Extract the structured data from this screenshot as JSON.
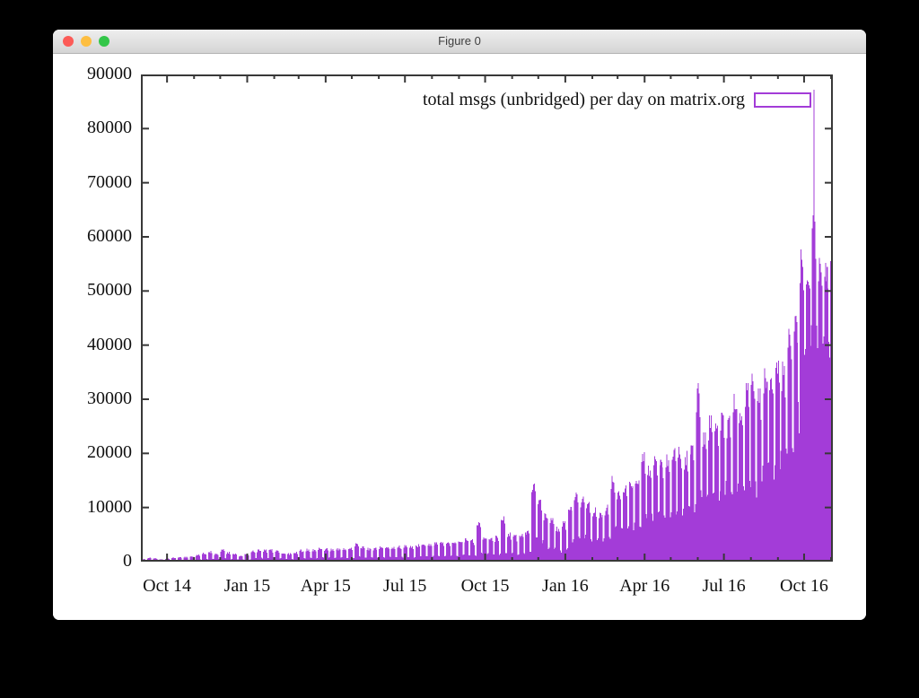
{
  "window": {
    "title": "Figure 0",
    "buttons": {
      "close": "close",
      "minimize": "minimize",
      "zoom": "zoom"
    }
  },
  "colors": {
    "series": "#a33cd8",
    "axis": "#383838",
    "text": "#111111",
    "close_button": "#fc5b57",
    "minimize_button": "#fdbe41",
    "zoom_button": "#33c649",
    "titlebar_top": "#eeeeee",
    "titlebar_bottom": "#d5d5d5"
  },
  "chart_data": {
    "type": "bar",
    "legend": "total msgs (unbridged) per day on matrix.org",
    "title": "",
    "xlabel": "",
    "ylabel": "",
    "grid": false,
    "legend_position": "top-right",
    "ylim": [
      0,
      90000
    ],
    "yticks": [
      "0",
      "10000",
      "20000",
      "30000",
      "40000",
      "50000",
      "60000",
      "70000",
      "80000",
      "90000"
    ],
    "xticks": [
      {
        "label": "Oct 14",
        "day": 30
      },
      {
        "label": "Jan 15",
        "day": 122
      },
      {
        "label": "Apr 15",
        "day": 212
      },
      {
        "label": "Jul 15",
        "day": 303
      },
      {
        "label": "Oct 15",
        "day": 395
      },
      {
        "label": "Jan 16",
        "day": 487
      },
      {
        "label": "Apr 16",
        "day": 578
      },
      {
        "label": "Jul 16",
        "day": 669
      },
      {
        "label": "Oct 16",
        "day": 761
      }
    ],
    "minor_tick_days": [
      30,
      61,
      91,
      122,
      153,
      181,
      212,
      242,
      273,
      303,
      334,
      365,
      395,
      426,
      456,
      487,
      518,
      547,
      578,
      608,
      639,
      669,
      700,
      731,
      761,
      792
    ],
    "x_start": "2014-09-01",
    "x_end": "2016-11-03",
    "days_total": 794,
    "week0_start": "2014-09-01",
    "sampling_note": "daily impulses; values below are weekly [weekday-peak, weekend-trough] envelope read from the plot",
    "weekly_envelope": [
      [
        500,
        120
      ],
      [
        750,
        160
      ],
      [
        650,
        130
      ],
      [
        450,
        90
      ],
      [
        600,
        150
      ],
      [
        750,
        200
      ],
      [
        850,
        230
      ],
      [
        950,
        260
      ],
      [
        1100,
        300
      ],
      [
        1400,
        380
      ],
      [
        1700,
        450
      ],
      [
        2000,
        520
      ],
      [
        1600,
        430
      ],
      [
        2300,
        600
      ],
      [
        1800,
        480
      ],
      [
        1500,
        400
      ],
      [
        1200,
        330
      ],
      [
        1500,
        420
      ],
      [
        2100,
        580
      ],
      [
        2300,
        640
      ],
      [
        2200,
        600
      ],
      [
        2300,
        640
      ],
      [
        2100,
        580
      ],
      [
        1700,
        470
      ],
      [
        1600,
        440
      ],
      [
        1800,
        500
      ],
      [
        2200,
        610
      ],
      [
        2400,
        660
      ],
      [
        2300,
        630
      ],
      [
        2600,
        720
      ],
      [
        2500,
        690
      ],
      [
        2400,
        660
      ],
      [
        2600,
        720
      ],
      [
        2500,
        690
      ],
      [
        2600,
        720
      ],
      [
        3400,
        900
      ],
      [
        2800,
        770
      ],
      [
        2600,
        720
      ],
      [
        2700,
        750
      ],
      [
        2900,
        800
      ],
      [
        3000,
        830
      ],
      [
        2800,
        770
      ],
      [
        3000,
        830
      ],
      [
        3100,
        860
      ],
      [
        2900,
        800
      ],
      [
        3200,
        880
      ],
      [
        3400,
        940
      ],
      [
        3300,
        910
      ],
      [
        3600,
        1000
      ],
      [
        3800,
        1050
      ],
      [
        3700,
        1020
      ],
      [
        3900,
        1080
      ],
      [
        4100,
        1150
      ],
      [
        4300,
        1200
      ],
      [
        4200,
        1170
      ],
      [
        7400,
        1600
      ],
      [
        5000,
        1400
      ],
      [
        4600,
        1280
      ],
      [
        4800,
        1330
      ],
      [
        8400,
        1500
      ],
      [
        5500,
        1550
      ],
      [
        5000,
        1400
      ],
      [
        5300,
        1480
      ],
      [
        5800,
        1650
      ],
      [
        15200,
        4200
      ],
      [
        12500,
        3500
      ],
      [
        9000,
        2600
      ],
      [
        8000,
        2300
      ],
      [
        6500,
        1900
      ],
      [
        7500,
        2200
      ],
      [
        10500,
        3600
      ],
      [
        12900,
        4600
      ],
      [
        12000,
        4400
      ],
      [
        11000,
        4100
      ],
      [
        10000,
        3900
      ],
      [
        9500,
        3800
      ],
      [
        10500,
        4300
      ],
      [
        16900,
        6000
      ],
      [
        13500,
        5400
      ],
      [
        14500,
        5800
      ],
      [
        15500,
        6200
      ],
      [
        16500,
        6600
      ],
      [
        20500,
        8200
      ],
      [
        18500,
        7800
      ],
      [
        19500,
        8300
      ],
      [
        18800,
        8000
      ],
      [
        19800,
        8600
      ],
      [
        21000,
        9200
      ],
      [
        21700,
        9600
      ],
      [
        20500,
        9200
      ],
      [
        21500,
        9700
      ],
      [
        34500,
        12000
      ],
      [
        24000,
        11500
      ],
      [
        27000,
        12500
      ],
      [
        25500,
        12200
      ],
      [
        28000,
        13000
      ],
      [
        27000,
        13000
      ],
      [
        31000,
        14000
      ],
      [
        29000,
        13500
      ],
      [
        33000,
        14500
      ],
      [
        34700,
        13000
      ],
      [
        32000,
        15500
      ],
      [
        36700,
        16500
      ],
      [
        35000,
        17000
      ],
      [
        38500,
        18000
      ],
      [
        37000,
        19000
      ],
      [
        43000,
        21000
      ],
      [
        47000,
        26000
      ],
      [
        58400,
        34000
      ],
      [
        55000,
        38000
      ],
      [
        64000,
        42000
      ],
      [
        57000,
        40000
      ],
      [
        56000,
        41000
      ],
      [
        56500,
        44000
      ]
    ],
    "max_peak": {
      "date": "2016-10-12",
      "day": 772,
      "value": 87200
    },
    "notable_spikes": [
      {
        "date": "2015-09-22",
        "value": 7400
      },
      {
        "date": "2015-11-27",
        "value": 15200
      },
      {
        "date": "2016-06-01",
        "value": 34500
      },
      {
        "date": "2016-10-12",
        "value": 87200
      }
    ]
  }
}
